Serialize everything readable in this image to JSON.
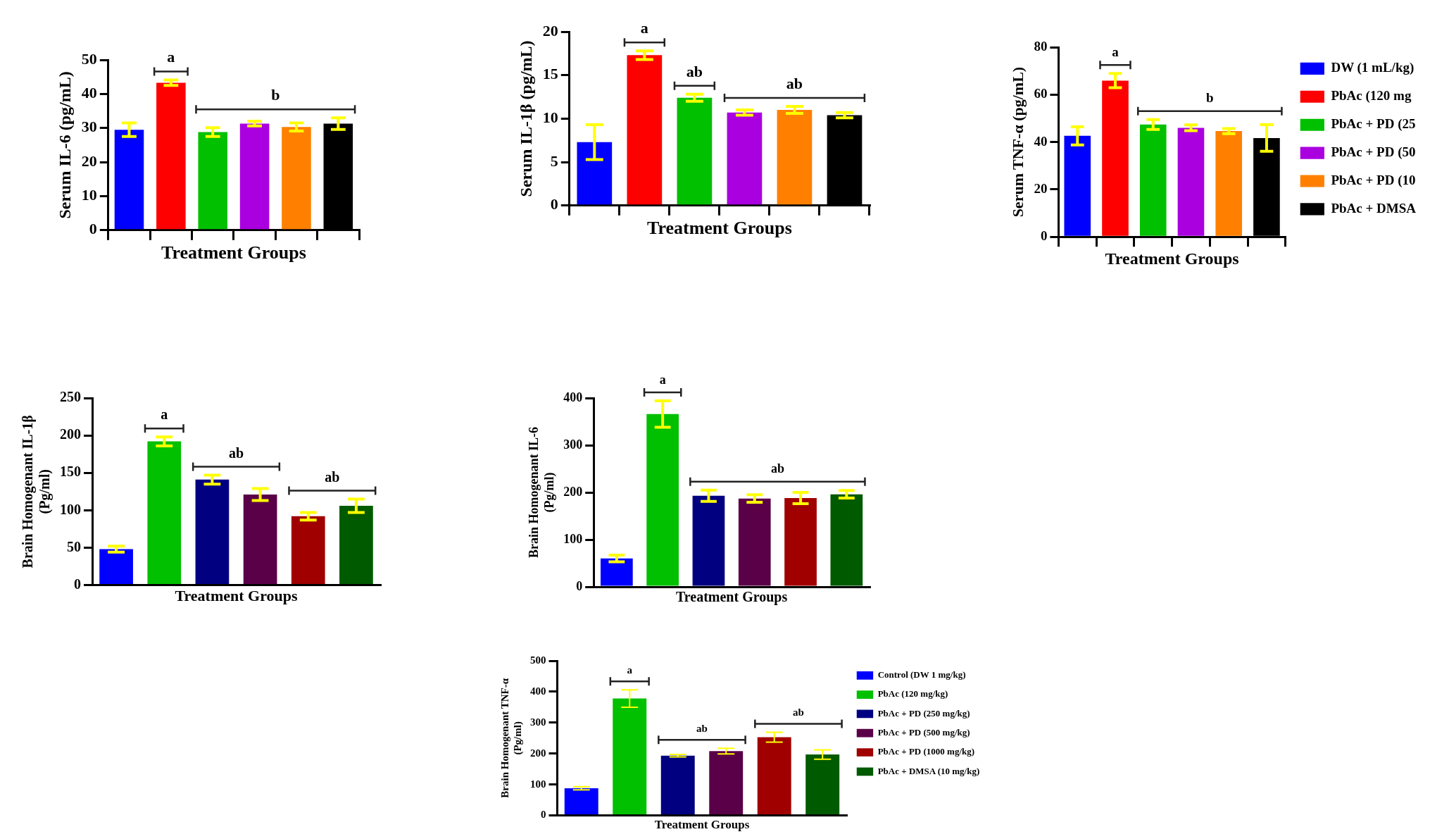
{
  "chart_data": [
    {
      "type": "bar",
      "xlabel": "Treatment Groups",
      "ylabel": "Serum IL-6 (pg/mL)",
      "categories": [
        null,
        null,
        null,
        null,
        null,
        null
      ],
      "ylim": [
        0,
        50
      ],
      "yticks": [
        0,
        10,
        20,
        30,
        40,
        50
      ],
      "tick_labels": "y",
      "series": [
        {
          "color": "#0000ff",
          "values": [
            29.5,
            null,
            null,
            null,
            null,
            null
          ],
          "errors": [
            2,
            null,
            null,
            null,
            null,
            null
          ]
        },
        {
          "color": "#ff0000",
          "values": [
            null,
            43.3,
            null,
            null,
            null,
            null
          ],
          "errors": [
            null,
            0.8,
            null,
            null,
            null,
            null
          ]
        },
        {
          "color": "#00c000",
          "values": [
            null,
            null,
            28.8,
            null,
            null,
            null
          ],
          "errors": [
            null,
            null,
            1.3,
            null,
            null,
            null
          ]
        },
        {
          "color": "#aa00e0",
          "values": [
            null,
            null,
            null,
            31.3,
            null,
            null
          ],
          "errors": [
            null,
            null,
            null,
            0.7,
            null,
            null
          ]
        },
        {
          "color": "#ff8000",
          "values": [
            null,
            null,
            null,
            null,
            30.3,
            null
          ],
          "errors": [
            null,
            null,
            null,
            null,
            1.2,
            null
          ]
        },
        {
          "color": "#000000",
          "values": [
            null,
            null,
            null,
            null,
            null,
            31.3
          ],
          "errors": [
            null,
            null,
            null,
            null,
            null,
            1.7
          ]
        }
      ],
      "annotations": [
        "a",
        "b"
      ]
    },
    {
      "type": "bar",
      "xlabel": "Treatment Groups",
      "ylabel": "Serum IL-1β (pg/mL)",
      "categories": [
        null,
        null,
        null,
        null,
        null,
        null
      ],
      "ylim": [
        0,
        20
      ],
      "yticks": [
        0,
        5,
        10,
        15,
        20
      ],
      "tick_labels": "y",
      "series": [
        {
          "color": "#0000ff",
          "values": [
            7.3,
            null,
            null,
            null,
            null,
            null
          ],
          "errors": [
            2,
            null,
            null,
            null,
            null,
            null
          ]
        },
        {
          "color": "#ff0000",
          "values": [
            null,
            17.3,
            null,
            null,
            null,
            null
          ],
          "errors": [
            null,
            0.5,
            null,
            null,
            null,
            null
          ]
        },
        {
          "color": "#00c000",
          "values": [
            null,
            null,
            12.4,
            null,
            null,
            null
          ],
          "errors": [
            null,
            null,
            0.4,
            null,
            null,
            null
          ]
        },
        {
          "color": "#aa00e0",
          "values": [
            null,
            null,
            null,
            10.7,
            null,
            null
          ],
          "errors": [
            null,
            null,
            null,
            0.3,
            null,
            null
          ]
        },
        {
          "color": "#ff8000",
          "values": [
            null,
            null,
            null,
            null,
            11.0,
            null
          ],
          "errors": [
            null,
            null,
            null,
            null,
            0.4,
            null
          ]
        },
        {
          "color": "#000000",
          "values": [
            null,
            null,
            null,
            null,
            null,
            10.4
          ],
          "errors": [
            null,
            null,
            null,
            null,
            null,
            0.3
          ]
        }
      ],
      "annotations": [
        "a",
        "ab",
        "ab"
      ]
    },
    {
      "type": "bar",
      "xlabel": "Treatment Groups",
      "ylabel": "Serum TNF-α (pg/mL)",
      "categories": [
        null,
        null,
        null,
        null,
        null,
        null
      ],
      "ylim": [
        0,
        80
      ],
      "yticks": [
        0,
        20,
        40,
        60,
        80
      ],
      "tick_labels": "y",
      "legend": "right",
      "series": [
        {
          "name": "DW (1 mL/kg)",
          "color": "#0000ff",
          "values": [
            42.6,
            null,
            null,
            null,
            null,
            null
          ],
          "errors": [
            3.8,
            null,
            null,
            null,
            null,
            null
          ]
        },
        {
          "name": "PbAc (120 mg",
          "color": "#ff0000",
          "values": [
            null,
            65.9,
            null,
            null,
            null,
            null
          ],
          "errors": [
            null,
            3,
            null,
            null,
            null,
            null
          ]
        },
        {
          "name": "PbAc + PD (25",
          "color": "#00c000",
          "values": [
            null,
            null,
            47.4,
            null,
            null,
            null
          ],
          "errors": [
            null,
            null,
            2.1,
            null,
            null,
            null
          ]
        },
        {
          "name": "PbAc + PD (50",
          "color": "#aa00e0",
          "values": [
            null,
            null,
            null,
            46.0,
            null,
            null
          ],
          "errors": [
            null,
            null,
            null,
            1.2,
            null,
            null
          ]
        },
        {
          "name": "PbAc + PD (10",
          "color": "#ff8000",
          "values": [
            null,
            null,
            null,
            null,
            44.6,
            null
          ],
          "errors": [
            null,
            null,
            null,
            null,
            1.1,
            null
          ]
        },
        {
          "name": "PbAc + DMSA",
          "color": "#000000",
          "values": [
            null,
            null,
            null,
            null,
            null,
            41.7
          ],
          "errors": [
            null,
            null,
            null,
            null,
            null,
            5.6
          ]
        }
      ],
      "annotations": [
        "a",
        "b"
      ]
    },
    {
      "type": "bar",
      "xlabel": "Treatment Groups",
      "ylabel": "Brain Homogenant IL-1β (Pg/ml)",
      "categories": [
        null,
        null,
        null,
        null,
        null,
        null
      ],
      "ylim": [
        0,
        250
      ],
      "yticks": [
        0,
        50,
        100,
        150,
        200,
        250
      ],
      "tick_labels": "y",
      "series": [
        {
          "color": "#0000ff",
          "values": [
            48,
            null,
            null,
            null,
            null,
            null
          ],
          "errors": [
            4,
            null,
            null,
            null,
            null,
            null
          ]
        },
        {
          "color": "#00c000",
          "values": [
            null,
            192,
            null,
            null,
            null,
            null
          ],
          "errors": [
            null,
            6,
            null,
            null,
            null,
            null
          ]
        },
        {
          "color": "#000080",
          "values": [
            null,
            null,
            141,
            null,
            null,
            null
          ],
          "errors": [
            null,
            null,
            6,
            null,
            null,
            null
          ]
        },
        {
          "color": "#5a0048",
          "values": [
            null,
            null,
            null,
            121,
            null,
            null
          ],
          "errors": [
            null,
            null,
            null,
            8,
            null,
            null
          ]
        },
        {
          "color": "#a00000",
          "values": [
            null,
            null,
            null,
            null,
            92,
            null
          ],
          "errors": [
            null,
            null,
            null,
            null,
            5,
            null
          ]
        },
        {
          "color": "#005a00",
          "values": [
            null,
            null,
            null,
            null,
            null,
            106
          ],
          "errors": [
            null,
            null,
            null,
            null,
            null,
            9
          ]
        }
      ],
      "annotations": [
        "a",
        "ab",
        "ab"
      ]
    },
    {
      "type": "bar",
      "xlabel": "Treatment Groups",
      "ylabel": "Brain Homogenant IL-6 (Pg/ml)",
      "categories": [
        null,
        null,
        null,
        null,
        null,
        null
      ],
      "ylim": [
        0,
        400
      ],
      "yticks": [
        0,
        100,
        200,
        300,
        400
      ],
      "tick_labels": "y",
      "series": [
        {
          "color": "#0000ff",
          "values": [
            60,
            null,
            null,
            null,
            null,
            null
          ],
          "errors": [
            7,
            null,
            null,
            null,
            null,
            null
          ]
        },
        {
          "color": "#00c000",
          "values": [
            null,
            366,
            null,
            null,
            null,
            null
          ],
          "errors": [
            null,
            28,
            null,
            null,
            null,
            null
          ]
        },
        {
          "color": "#000080",
          "values": [
            null,
            null,
            193,
            null,
            null,
            null
          ],
          "errors": [
            null,
            null,
            12,
            null,
            null,
            null
          ]
        },
        {
          "color": "#5a0048",
          "values": [
            null,
            null,
            null,
            187,
            null,
            null
          ],
          "errors": [
            null,
            null,
            null,
            8,
            null,
            null
          ]
        },
        {
          "color": "#a00000",
          "values": [
            null,
            null,
            null,
            null,
            188,
            null
          ],
          "errors": [
            null,
            null,
            null,
            null,
            12,
            null
          ]
        },
        {
          "color": "#005a00",
          "values": [
            null,
            null,
            null,
            null,
            null,
            196
          ],
          "errors": [
            null,
            null,
            null,
            null,
            null,
            8
          ]
        }
      ],
      "annotations": [
        "a",
        "ab"
      ]
    },
    {
      "type": "bar",
      "xlabel": "Treatment Groups",
      "ylabel": "Brain Homogenant TNF-α (Pg/ml)",
      "categories": [
        null,
        null,
        null,
        null,
        null,
        null
      ],
      "ylim": [
        0,
        500
      ],
      "yticks": [
        0,
        100,
        200,
        300,
        400,
        500
      ],
      "tick_labels": "y",
      "legend": "right",
      "series": [
        {
          "name": "Control (DW 1 mg/kg)",
          "color": "#0000ff",
          "values": [
            88,
            null,
            null,
            null,
            null,
            null
          ],
          "errors": [
            5,
            null,
            null,
            null,
            null,
            null
          ]
        },
        {
          "name": "PbAc (120 mg/kg)",
          "color": "#00c000",
          "values": [
            null,
            378,
            null,
            null,
            null,
            null
          ],
          "errors": [
            null,
            28,
            null,
            null,
            null,
            null
          ]
        },
        {
          "name": "PbAc + PD (250 mg/kg)",
          "color": "#000080",
          "values": [
            null,
            null,
            193,
            null,
            null,
            null
          ],
          "errors": [
            null,
            null,
            4,
            null,
            null,
            null
          ]
        },
        {
          "name": "PbAc + PD (500 mg/kg)",
          "color": "#5a0048",
          "values": [
            null,
            null,
            null,
            208,
            null,
            null
          ],
          "errors": [
            null,
            null,
            null,
            9,
            null,
            null
          ]
        },
        {
          "name": "PbAc + PD (1000 mg/kg)",
          "color": "#a00000",
          "values": [
            null,
            null,
            null,
            null,
            253,
            null
          ],
          "errors": [
            null,
            null,
            null,
            null,
            16,
            null
          ]
        },
        {
          "name": "PbAc + DMSA (10 mg/kg)",
          "color": "#005a00",
          "values": [
            null,
            null,
            null,
            null,
            null,
            197
          ],
          "errors": [
            null,
            null,
            null,
            null,
            null,
            15
          ]
        }
      ],
      "annotations": [
        "a",
        "ab",
        "ab"
      ]
    }
  ]
}
